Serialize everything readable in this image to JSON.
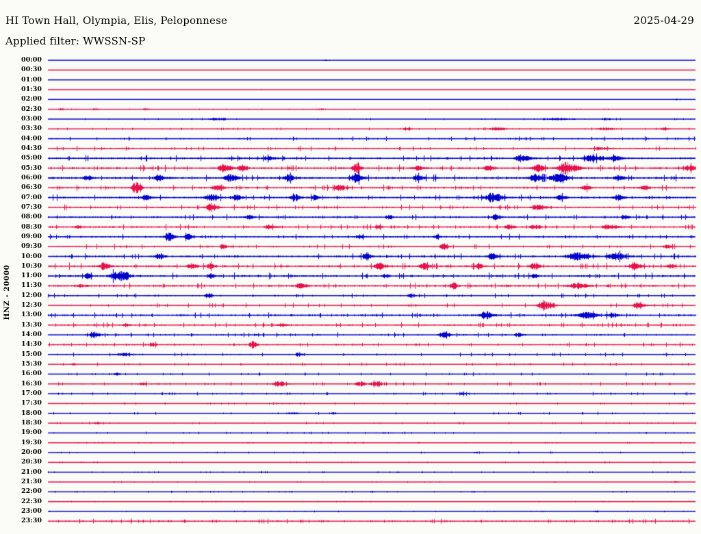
{
  "header": {
    "title": "HI Town Hall, Olympia, Elis, Peloponnese",
    "filter": "Applied filter: WWSSN-SP",
    "date": "2025-04-29"
  },
  "axis": {
    "channel_label": "HNZ - 20000"
  },
  "colors": {
    "trace_blue": "#0000cc",
    "trace_red": "#e6114b",
    "text": "#000000",
    "background": "#fbfbf8"
  },
  "chart_data": {
    "type": "line",
    "subtype": "helicorder-seismogram",
    "title": "HI Town Hall, Olympia, Elis, Peloponnese",
    "date": "2025-04-29",
    "filter": "WWSSN-SP",
    "channel": "HNZ",
    "gain": "20000",
    "row_interval_minutes": 30,
    "trace_color_alternation": [
      "blue",
      "red"
    ],
    "legend_position": "none",
    "grid": false,
    "rows": [
      {
        "t": "00:00",
        "c": "b",
        "n": 0.18,
        "b": [
          [
            0.43,
            1.2,
            5
          ]
        ]
      },
      {
        "t": "00:30",
        "c": "r",
        "n": 0.14,
        "b": []
      },
      {
        "t": "01:00",
        "c": "b",
        "n": 0.14,
        "b": []
      },
      {
        "t": "01:30",
        "c": "r",
        "n": 0.14,
        "b": [
          [
            0.33,
            0.9,
            4
          ]
        ]
      },
      {
        "t": "02:00",
        "c": "b",
        "n": 0.18,
        "b": [
          [
            0.97,
            0.9,
            4
          ]
        ]
      },
      {
        "t": "02:30",
        "c": "r",
        "n": 0.26,
        "b": [
          [
            0.02,
            1.3,
            7
          ],
          [
            0.07,
            1.3,
            9
          ],
          [
            0.15,
            1.3,
            7
          ],
          [
            0.42,
            1.3,
            9
          ]
        ]
      },
      {
        "t": "03:00",
        "c": "b",
        "n": 0.36,
        "b": [
          [
            0.26,
            1.8,
            16
          ],
          [
            0.78,
            1.8,
            24
          ],
          [
            0.86,
            1.4,
            12
          ]
        ]
      },
      {
        "t": "03:30",
        "c": "r",
        "n": 0.46,
        "b": [
          [
            0.55,
            1.8,
            9
          ],
          [
            0.69,
            2.2,
            15
          ],
          [
            0.86,
            2.2,
            13
          ],
          [
            0.95,
            1.8,
            7
          ]
        ]
      },
      {
        "t": "04:00",
        "c": "b",
        "n": 0.9,
        "b": []
      },
      {
        "t": "04:30",
        "c": "r",
        "n": 1.0,
        "b": [
          [
            0.85,
            2,
            9
          ]
        ]
      },
      {
        "t": "05:00",
        "c": "b",
        "n": 1.15,
        "b": [
          [
            0.34,
            2.5,
            9
          ],
          [
            0.73,
            5,
            9
          ],
          [
            0.84,
            4.5,
            14
          ],
          [
            0.875,
            4,
            8
          ]
        ]
      },
      {
        "t": "05:30",
        "c": "r",
        "n": 1.25,
        "b": [
          [
            0.27,
            6,
            9
          ],
          [
            0.3,
            4,
            7
          ],
          [
            0.475,
            8,
            6
          ],
          [
            0.57,
            3,
            7
          ],
          [
            0.68,
            4,
            7
          ],
          [
            0.755,
            5,
            8
          ],
          [
            0.8,
            9,
            12
          ],
          [
            0.99,
            5,
            7
          ]
        ]
      },
      {
        "t": "06:00",
        "c": "b",
        "n": 1.35,
        "b": [
          [
            0.06,
            3,
            7
          ],
          [
            0.17,
            4,
            7
          ],
          [
            0.28,
            7,
            8
          ],
          [
            0.37,
            5,
            7
          ],
          [
            0.475,
            7,
            8
          ],
          [
            0.57,
            4,
            7
          ],
          [
            0.75,
            6,
            8
          ],
          [
            0.785,
            7,
            11
          ],
          [
            0.88,
            4,
            7
          ]
        ]
      },
      {
        "t": "06:30",
        "c": "r",
        "n": 1.15,
        "b": [
          [
            0.135,
            8,
            6
          ],
          [
            0.26,
            4,
            7
          ],
          [
            0.45,
            4,
            7
          ],
          [
            0.83,
            3,
            7
          ],
          [
            0.92,
            3.5,
            6
          ]
        ]
      },
      {
        "t": "07:00",
        "c": "b",
        "n": 1.15,
        "b": [
          [
            0.15,
            4,
            7
          ],
          [
            0.25,
            5,
            9
          ],
          [
            0.29,
            4,
            7
          ],
          [
            0.38,
            5,
            7
          ],
          [
            0.41,
            4,
            5
          ],
          [
            0.685,
            7,
            11
          ],
          [
            0.79,
            4,
            7
          ],
          [
            0.88,
            4,
            7
          ]
        ]
      },
      {
        "t": "07:30",
        "c": "r",
        "n": 1.05,
        "b": [
          [
            0.25,
            7,
            7
          ],
          [
            0.755,
            4,
            9
          ]
        ]
      },
      {
        "t": "08:00",
        "c": "b",
        "n": 1.05,
        "b": [
          [
            0.31,
            3,
            7
          ],
          [
            0.525,
            3,
            5
          ],
          [
            0.69,
            4,
            5
          ],
          [
            0.89,
            3,
            5
          ]
        ]
      },
      {
        "t": "08:30",
        "c": "r",
        "n": 1.05,
        "b": [
          [
            0.045,
            2,
            5
          ],
          [
            0.34,
            3,
            7
          ],
          [
            0.51,
            2,
            5
          ],
          [
            0.71,
            3,
            7
          ],
          [
            0.75,
            3,
            7
          ],
          [
            0.865,
            4,
            10
          ]
        ]
      },
      {
        "t": "09:00",
        "c": "b",
        "n": 1.05,
        "b": [
          [
            0.185,
            6,
            7
          ],
          [
            0.215,
            5,
            5
          ],
          [
            0.48,
            3,
            5
          ],
          [
            0.6,
            3,
            5
          ]
        ]
      },
      {
        "t": "09:30",
        "c": "r",
        "n": 0.95,
        "b": [
          [
            0.27,
            3,
            5
          ],
          [
            0.61,
            5.5,
            5
          ],
          [
            0.955,
            3,
            5
          ]
        ]
      },
      {
        "t": "10:00",
        "c": "b",
        "n": 1.15,
        "b": [
          [
            0.17,
            4,
            7
          ],
          [
            0.49,
            4,
            7
          ],
          [
            0.685,
            4.5,
            7
          ],
          [
            0.815,
            6,
            15
          ],
          [
            0.875,
            6,
            12
          ]
        ]
      },
      {
        "t": "10:30",
        "c": "r",
        "n": 1.25,
        "b": [
          [
            0.085,
            5,
            7
          ],
          [
            0.22,
            4,
            7
          ],
          [
            0.25,
            4,
            5
          ],
          [
            0.51,
            5,
            7
          ],
          [
            0.58,
            5,
            7
          ],
          [
            0.665,
            4,
            5
          ],
          [
            0.75,
            4,
            7
          ],
          [
            0.905,
            6,
            7
          ],
          [
            0.96,
            3,
            5
          ]
        ]
      },
      {
        "t": "11:00",
        "c": "b",
        "n": 1.25,
        "b": [
          [
            0.06,
            3,
            6
          ],
          [
            0.1,
            6,
            7
          ],
          [
            0.115,
            7,
            8
          ],
          [
            0.25,
            3,
            5
          ],
          [
            0.52,
            3,
            5
          ],
          [
            0.75,
            3,
            5
          ]
        ]
      },
      {
        "t": "11:30",
        "c": "r",
        "n": 1.15,
        "b": [
          [
            0.05,
            2,
            7
          ],
          [
            0.39,
            4,
            7
          ],
          [
            0.625,
            6,
            5
          ],
          [
            0.815,
            4,
            12
          ]
        ]
      },
      {
        "t": "12:00",
        "c": "b",
        "n": 0.9,
        "b": [
          [
            0.245,
            4,
            5
          ],
          [
            0.56,
            3,
            5
          ]
        ]
      },
      {
        "t": "12:30",
        "c": "r",
        "n": 0.9,
        "b": [
          [
            0.765,
            8,
            10
          ],
          [
            0.91,
            6,
            7
          ]
        ]
      },
      {
        "t": "13:00",
        "c": "b",
        "n": 1.15,
        "b": [
          [
            0.675,
            6,
            9
          ],
          [
            0.83,
            5,
            12
          ],
          [
            0.87,
            4,
            7
          ]
        ]
      },
      {
        "t": "13:30",
        "c": "r",
        "n": 0.95,
        "b": [
          [
            0.12,
            2,
            5
          ],
          [
            0.36,
            2,
            7
          ]
        ]
      },
      {
        "t": "14:00",
        "c": "b",
        "n": 0.9,
        "b": [
          [
            0.07,
            5,
            7
          ],
          [
            0.61,
            5,
            7
          ],
          [
            0.725,
            3,
            5
          ]
        ]
      },
      {
        "t": "14:30",
        "c": "r",
        "n": 0.85,
        "b": [
          [
            0.16,
            3,
            5
          ],
          [
            0.315,
            5,
            5
          ]
        ]
      },
      {
        "t": "15:00",
        "c": "b",
        "n": 0.75,
        "b": [
          [
            0.115,
            1.8,
            13
          ],
          [
            0.385,
            3,
            5
          ]
        ]
      },
      {
        "t": "15:30",
        "c": "r",
        "n": 0.65,
        "b": [
          [
            0.04,
            1.4,
            5
          ]
        ]
      },
      {
        "t": "16:00",
        "c": "b",
        "n": 0.65,
        "b": [
          [
            0.105,
            2,
            5
          ]
        ]
      },
      {
        "t": "16:30",
        "c": "r",
        "n": 0.75,
        "b": [
          [
            0.145,
            2,
            7
          ],
          [
            0.355,
            4,
            9
          ],
          [
            0.48,
            4,
            7
          ],
          [
            0.505,
            4,
            9
          ]
        ]
      },
      {
        "t": "17:00",
        "c": "b",
        "n": 0.65,
        "b": [
          [
            0.64,
            2,
            5
          ]
        ]
      },
      {
        "t": "17:30",
        "c": "r",
        "n": 0.48,
        "b": []
      },
      {
        "t": "18:00",
        "c": "b",
        "n": 0.5,
        "b": [
          [
            0.375,
            1.8,
            9
          ],
          [
            0.44,
            1.8,
            4
          ]
        ]
      },
      {
        "t": "18:30",
        "c": "r",
        "n": 0.48,
        "b": [
          [
            0.075,
            1.8,
            5
          ]
        ]
      },
      {
        "t": "19:00",
        "c": "b",
        "n": 0.42,
        "b": []
      },
      {
        "t": "19:30",
        "c": "r",
        "n": 0.38,
        "b": []
      },
      {
        "t": "20:00",
        "c": "b",
        "n": 0.38,
        "b": [
          [
            0.66,
            1.3,
            4
          ]
        ]
      },
      {
        "t": "20:30",
        "c": "r",
        "n": 0.34,
        "b": []
      },
      {
        "t": "21:00",
        "c": "b",
        "n": 0.34,
        "b": [
          [
            0.54,
            1.3,
            4
          ]
        ]
      },
      {
        "t": "21:30",
        "c": "r",
        "n": 0.34,
        "b": [
          [
            0.5,
            1,
            4
          ],
          [
            0.97,
            1,
            5
          ]
        ]
      },
      {
        "t": "22:00",
        "c": "b",
        "n": 0.38,
        "b": [
          [
            0.5,
            1.3,
            5
          ],
          [
            0.655,
            1,
            4
          ]
        ]
      },
      {
        "t": "22:30",
        "c": "r",
        "n": 0.3,
        "b": []
      },
      {
        "t": "23:00",
        "c": "b",
        "n": 0.3,
        "b": [
          [
            0.845,
            1.3,
            5
          ]
        ]
      },
      {
        "t": "23:30",
        "c": "r",
        "n": 1.0,
        "b": []
      }
    ]
  }
}
